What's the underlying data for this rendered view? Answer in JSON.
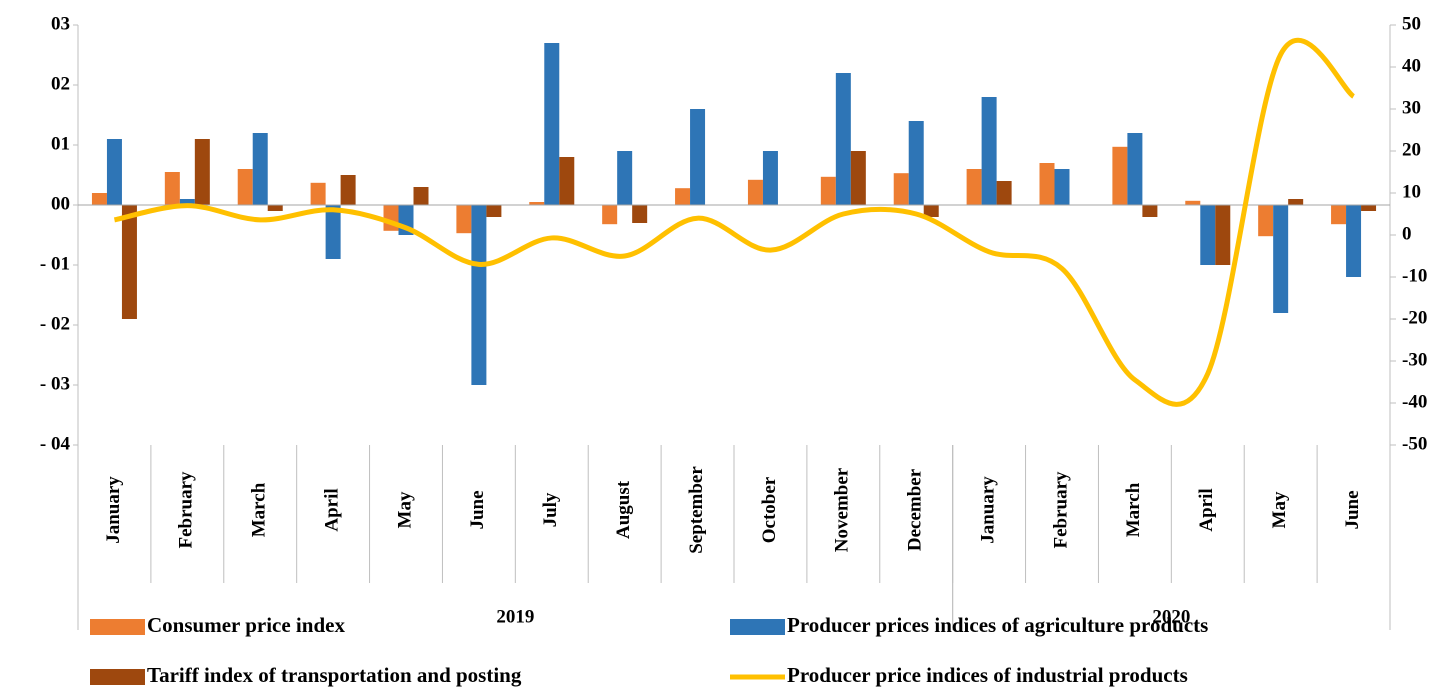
{
  "chart_data": {
    "type": "bar",
    "categories": [
      "January",
      "February",
      "March",
      "April",
      "May",
      "June",
      "July",
      "August",
      "September",
      "October",
      "November",
      "December",
      "January",
      "February",
      "March",
      "April",
      "May",
      "June"
    ],
    "groups": [
      {
        "label": "2019",
        "span": 12
      },
      {
        "label": "2020",
        "span": 6
      }
    ],
    "series": [
      {
        "name": "Consumer price index",
        "type": "bar",
        "color": "#ed7d31",
        "values": [
          2,
          5.5,
          6,
          3.7,
          -4.3,
          -4.7,
          0.5,
          -3.2,
          2.8,
          4.2,
          4.7,
          5.3,
          6,
          7,
          9.7,
          0.7,
          -5.2,
          -3.2
        ]
      },
      {
        "name": "Producer prices indices of agriculture products",
        "type": "bar",
        "color": "#2e75b6",
        "values": [
          11,
          1,
          12,
          -9,
          -5,
          -30,
          27,
          9,
          16,
          9,
          22,
          14,
          18,
          6,
          12,
          -10,
          -18,
          -12
        ]
      },
      {
        "name": "Tariff index of transportation and posting",
        "type": "bar",
        "color": "#9e480e",
        "values": [
          -19,
          11,
          -1,
          5,
          3,
          -2,
          8,
          -3,
          0,
          0,
          9,
          -2,
          4,
          0,
          -2,
          -10,
          1,
          -1
        ]
      },
      {
        "name": "Producer price indices of industrial products",
        "type": "line",
        "axis": "y2",
        "color": "#ffc000",
        "values": [
          3.6,
          7,
          3.6,
          6,
          1.7,
          -7,
          -0.7,
          -5,
          4,
          -3.6,
          5,
          5,
          -4,
          -8,
          -34.5,
          -33,
          43,
          33
        ]
      }
    ],
    "ylim": [
      -40,
      30
    ],
    "yticks": [
      {
        "value": 30,
        "label": "03"
      },
      {
        "value": 20,
        "label": "02"
      },
      {
        "value": 10,
        "label": "01"
      },
      {
        "value": 0,
        "label": "00"
      },
      {
        "value": -10,
        "label": "- 01"
      },
      {
        "value": -20,
        "label": "- 02"
      },
      {
        "value": -30,
        "label": "- 03"
      },
      {
        "value": -40,
        "label": "- 04"
      }
    ],
    "y2lim": [
      -50,
      50
    ],
    "y2ticks": [
      50,
      40,
      30,
      20,
      10,
      0,
      -10,
      -20,
      -30,
      -40,
      -50
    ]
  }
}
